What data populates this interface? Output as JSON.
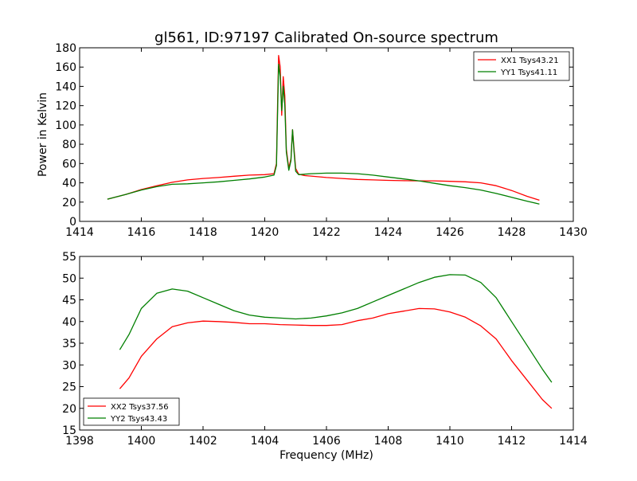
{
  "figure": {
    "title": "gl561, ID:97197 Calibrated On-source spectrum",
    "xlabel": "Frequency (MHz)"
  },
  "colors": {
    "red": "#ff0000",
    "green": "#007f00"
  },
  "chart_data": [
    {
      "type": "line",
      "title": "gl561, ID:97197 Calibrated On-source spectrum",
      "xlabel": "",
      "ylabel": "Power in Kelvin",
      "xlim": [
        1414,
        1430
      ],
      "ylim": [
        0,
        180
      ],
      "xticks": [
        "1414",
        "1416",
        "1418",
        "1420",
        "1422",
        "1424",
        "1426",
        "1428",
        "1430"
      ],
      "yticks": [
        "0",
        "20",
        "40",
        "60",
        "80",
        "100",
        "120",
        "140",
        "160",
        "180"
      ],
      "grid": false,
      "legend_position": "top-right",
      "series": [
        {
          "name": "XX1 Tsys43.21",
          "color": "#ff0000",
          "x": [
            1414.9,
            1415.5,
            1416,
            1416.5,
            1417,
            1417.5,
            1418,
            1418.5,
            1419,
            1419.5,
            1420,
            1420.3,
            1420.38,
            1420.42,
            1420.45,
            1420.5,
            1420.55,
            1420.6,
            1420.65,
            1420.7,
            1420.78,
            1420.85,
            1420.9,
            1420.95,
            1421,
            1421.1,
            1421.3,
            1421.5,
            1422,
            1422.5,
            1423,
            1423.5,
            1424,
            1424.5,
            1425,
            1425.5,
            1426,
            1426.5,
            1427,
            1427.5,
            1428,
            1428.5,
            1428.9
          ],
          "y": [
            23,
            28,
            33,
            37,
            40.5,
            43,
            44.5,
            45.5,
            46.8,
            48,
            48.5,
            49.5,
            60,
            130,
            172,
            160,
            110,
            150,
            130,
            75,
            55,
            65,
            95,
            75,
            55,
            49,
            47.5,
            47,
            45.5,
            44.5,
            43.5,
            43,
            42.5,
            42.2,
            42,
            42,
            41.5,
            41,
            40,
            37,
            32,
            26,
            22
          ]
        },
        {
          "name": "YY1 Tsys41.11",
          "color": "#007f00",
          "x": [
            1414.9,
            1415.5,
            1416,
            1416.5,
            1417,
            1417.5,
            1418,
            1418.5,
            1419,
            1419.5,
            1420,
            1420.3,
            1420.38,
            1420.42,
            1420.45,
            1420.5,
            1420.55,
            1420.6,
            1420.65,
            1420.7,
            1420.78,
            1420.85,
            1420.9,
            1420.95,
            1421,
            1421.1,
            1421.3,
            1421.5,
            1422,
            1422.5,
            1423,
            1423.5,
            1424,
            1424.5,
            1425,
            1425.5,
            1426,
            1426.5,
            1427,
            1427.5,
            1428,
            1428.5,
            1428.9
          ],
          "y": [
            23,
            28,
            32.5,
            36,
            38.5,
            39,
            40,
            41,
            42.5,
            44,
            46,
            48,
            58,
            120,
            163,
            150,
            115,
            140,
            120,
            72,
            53,
            63,
            95,
            72,
            52,
            48.5,
            49,
            49.5,
            50,
            50,
            49.5,
            48,
            46,
            44,
            42,
            39.5,
            37,
            35,
            32.5,
            29,
            25,
            21,
            18
          ]
        }
      ]
    },
    {
      "type": "line",
      "title": "",
      "xlabel": "Frequency (MHz)",
      "ylabel": "",
      "xlim": [
        1398,
        1414
      ],
      "ylim": [
        15,
        55
      ],
      "xticks": [
        "1398",
        "1400",
        "1402",
        "1404",
        "1406",
        "1408",
        "1410",
        "1412",
        "1414"
      ],
      "yticks": [
        "15",
        "20",
        "25",
        "30",
        "35",
        "40",
        "45",
        "50",
        "55"
      ],
      "grid": false,
      "legend_position": "bottom-left",
      "series": [
        {
          "name": "XX2 Tsys37.56",
          "color": "#ff0000",
          "x": [
            1399.3,
            1399.6,
            1400,
            1400.5,
            1401,
            1401.5,
            1402,
            1402.5,
            1403,
            1403.5,
            1404,
            1404.5,
            1405,
            1405.5,
            1406,
            1406.5,
            1407,
            1407.5,
            1408,
            1408.5,
            1409,
            1409.5,
            1410,
            1410.5,
            1411,
            1411.5,
            1412,
            1412.5,
            1413,
            1413.3
          ],
          "y": [
            24.5,
            27,
            32,
            36,
            38.8,
            39.7,
            40.1,
            40,
            39.8,
            39.5,
            39.5,
            39.3,
            39.2,
            39.1,
            39.1,
            39.3,
            40.2,
            40.8,
            41.8,
            42.4,
            43,
            42.9,
            42.2,
            41,
            39,
            36,
            31,
            26.5,
            22,
            20
          ]
        },
        {
          "name": "YY2 Tsys43.43",
          "color": "#007f00",
          "x": [
            1399.3,
            1399.6,
            1400,
            1400.5,
            1401,
            1401.5,
            1402,
            1402.5,
            1403,
            1403.5,
            1404,
            1404.5,
            1405,
            1405.5,
            1406,
            1406.5,
            1407,
            1407.5,
            1408,
            1408.5,
            1409,
            1409.5,
            1410,
            1410.5,
            1411,
            1411.5,
            1412,
            1412.5,
            1413,
            1413.3
          ],
          "y": [
            33.5,
            37,
            43,
            46.5,
            47.5,
            47,
            45.5,
            44,
            42.5,
            41.5,
            41,
            40.8,
            40.6,
            40.8,
            41.3,
            42,
            43,
            44.5,
            46,
            47.5,
            49,
            50.2,
            50.8,
            50.7,
            49,
            45.5,
            40,
            34.5,
            29,
            26
          ]
        }
      ]
    }
  ]
}
